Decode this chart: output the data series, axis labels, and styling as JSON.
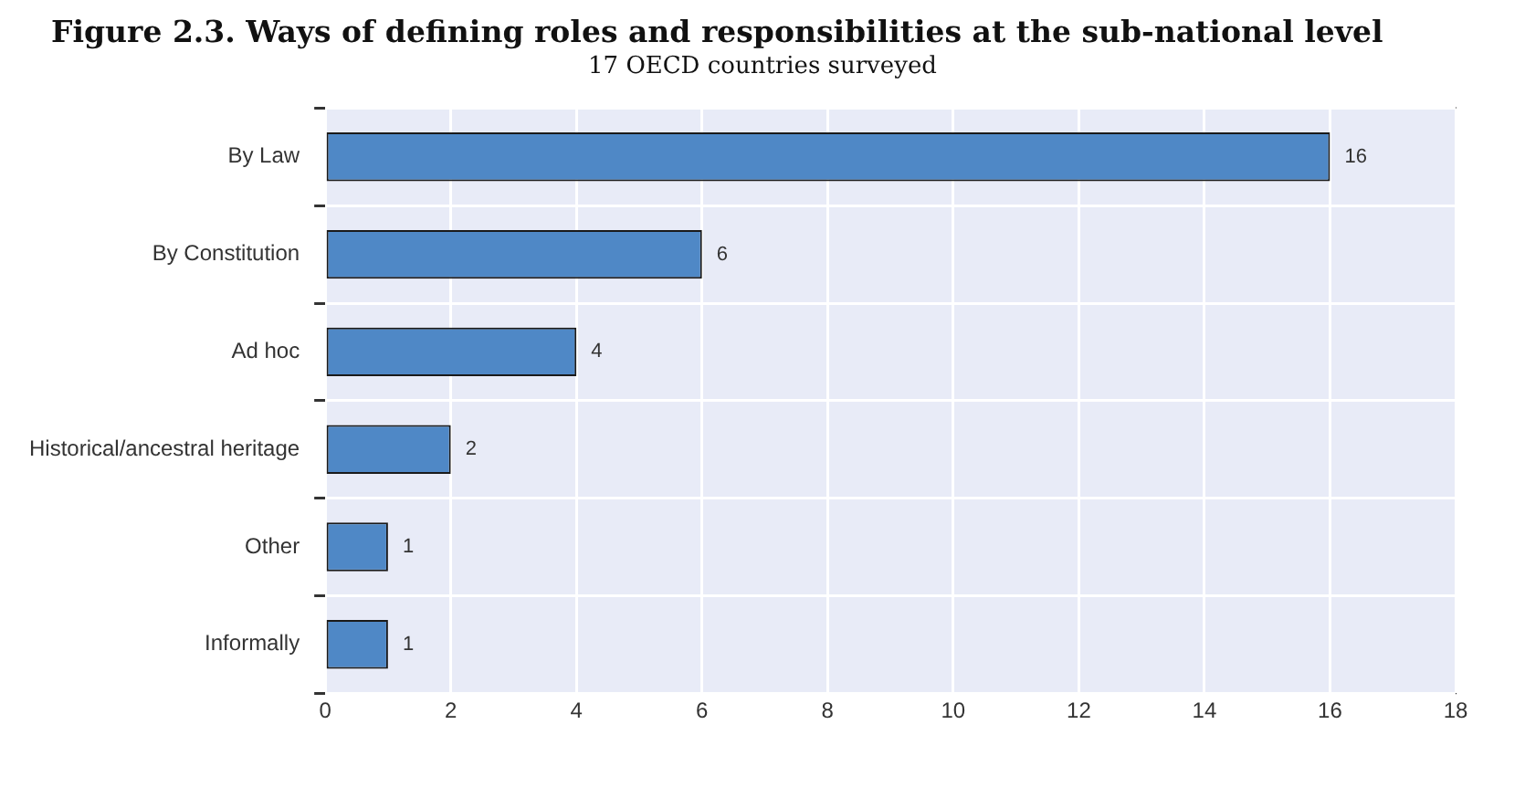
{
  "chart_data": {
    "type": "bar",
    "orientation": "horizontal",
    "title": "Figure 2.3. Ways of defining roles and responsibilities at the sub-national level",
    "subtitle": "17 OECD countries surveyed",
    "categories": [
      "By Law",
      "By Constitution",
      "Ad hoc",
      "Historical/ancestral heritage",
      "Other",
      "Informally"
    ],
    "values": [
      16,
      6,
      4,
      2,
      1,
      1
    ],
    "color": "#4f88c6",
    "xlim": [
      0,
      18
    ],
    "xticks": [
      0,
      2,
      4,
      6,
      8,
      10,
      12,
      14,
      16,
      18
    ],
    "grid": true,
    "data_labels": true,
    "legend": false
  }
}
